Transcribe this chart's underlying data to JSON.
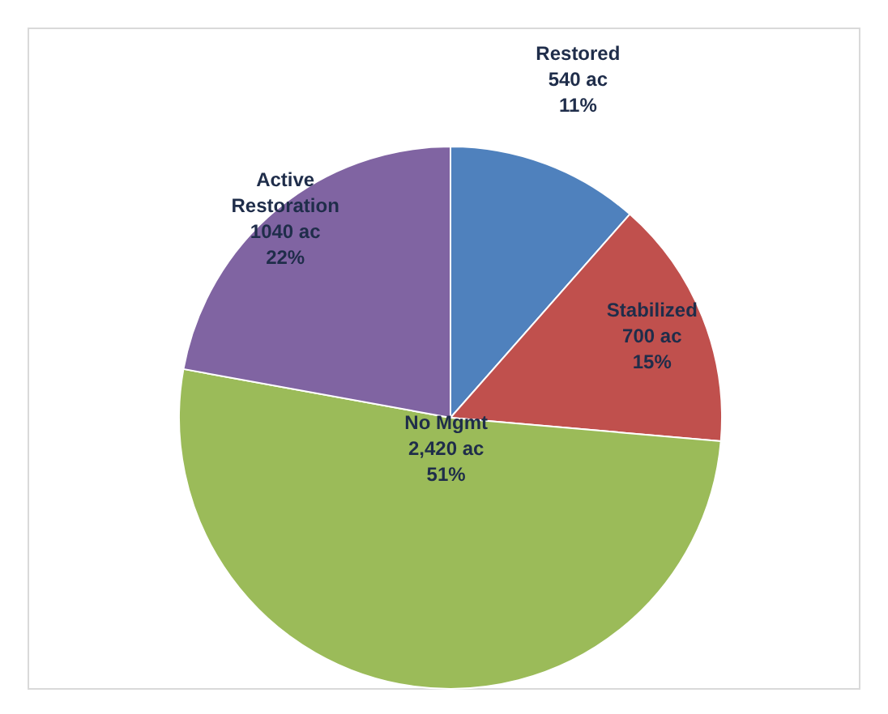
{
  "chart_data": {
    "type": "pie",
    "categories": [
      "Restored",
      "Stabilized",
      "No Mgmt",
      "Active Restoration"
    ],
    "values": [
      540,
      700,
      2420,
      1040
    ],
    "colors": [
      "#4f81bd",
      "#c0504d",
      "#9bbb59",
      "#8064a2"
    ],
    "value_labels": [
      "540 ac\n11%",
      "700 ac\n15%",
      "2,420 ac\n51%",
      "1040 ac\n22%"
    ],
    "legend": false
  }
}
